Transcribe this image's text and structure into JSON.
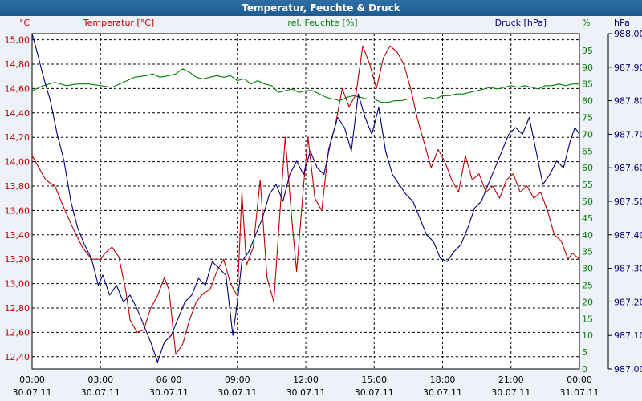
{
  "chart_data": {
    "type": "line",
    "title": "Temperatur, Feuchte & Druck",
    "x_ticks": [
      {
        "time": "00:00",
        "date": "30.07.11"
      },
      {
        "time": "03:00",
        "date": "30.07.11"
      },
      {
        "time": "06:00",
        "date": "30.07.11"
      },
      {
        "time": "09:00",
        "date": "30.07.11"
      },
      {
        "time": "12:00",
        "date": "30.07.11"
      },
      {
        "time": "15:00",
        "date": "30.07.11"
      },
      {
        "time": "18:00",
        "date": "30.07.11"
      },
      {
        "time": "21:00",
        "date": "30.07.11"
      },
      {
        "time": "00:00",
        "date": "31.07.11"
      }
    ],
    "x_range_hours": [
      0,
      24
    ],
    "axes": {
      "temperature": {
        "label": "Temperatur [°C]",
        "unit": "°C",
        "color": "#c00000",
        "range": [
          12.3,
          15.05
        ],
        "ticks": [
          "15,00",
          "14,80",
          "14,60",
          "14,40",
          "14,20",
          "14,00",
          "13,80",
          "13,60",
          "13,40",
          "13,20",
          "13,00",
          "12,80",
          "12,60",
          "12,40"
        ],
        "tick_values": [
          15.0,
          14.8,
          14.6,
          14.4,
          14.2,
          14.0,
          13.8,
          13.6,
          13.4,
          13.2,
          13.0,
          12.8,
          12.6,
          12.4
        ]
      },
      "humidity": {
        "label": "rel. Feuchte [%]",
        "unit": "%",
        "color": "#008000",
        "range": [
          0,
          100
        ],
        "ticks": [
          "95",
          "90",
          "85",
          "80",
          "75",
          "70",
          "65",
          "60",
          "55",
          "50",
          "45",
          "40",
          "35",
          "30",
          "25",
          "20",
          "15",
          "10",
          "5",
          "0"
        ],
        "tick_values": [
          95,
          90,
          85,
          80,
          75,
          70,
          65,
          60,
          55,
          50,
          45,
          40,
          35,
          30,
          25,
          20,
          15,
          10,
          5,
          0
        ]
      },
      "pressure": {
        "label": "Druck [hPa]",
        "unit": "hPa",
        "color": "#000080",
        "range": [
          987.0,
          988.0
        ],
        "ticks": [
          "988,00",
          "987,90",
          "987,80",
          "987,70",
          "987,60",
          "987,50",
          "987,40",
          "987,30",
          "987,20",
          "987,10",
          "987,00"
        ],
        "tick_values": [
          988.0,
          987.9,
          987.8,
          987.7,
          987.6,
          987.5,
          987.4,
          987.3,
          987.2,
          987.1,
          987.0
        ]
      }
    },
    "series": [
      {
        "name": "Temperatur",
        "axis": "temperature",
        "x": [
          0,
          0.3,
          0.6,
          1,
          1.4,
          1.8,
          2.2,
          2.6,
          3,
          3.2,
          3.5,
          3.8,
          4.1,
          4.3,
          4.6,
          4.9,
          5.2,
          5.5,
          5.8,
          6,
          6.3,
          6.6,
          6.9,
          7.2,
          7.5,
          7.8,
          8.1,
          8.4,
          8.7,
          9,
          9.2,
          9.4,
          9.7,
          10,
          10.3,
          10.6,
          10.8,
          11.1,
          11.4,
          11.6,
          11.9,
          12.1,
          12.4,
          12.7,
          13,
          13.3,
          13.6,
          13.9,
          14.2,
          14.5,
          14.8,
          15.1,
          15.4,
          15.7,
          16,
          16.3,
          16.6,
          16.9,
          17.2,
          17.5,
          17.8,
          18.1,
          18.4,
          18.7,
          19,
          19.3,
          19.6,
          19.9,
          20.2,
          20.5,
          20.8,
          21.1,
          21.4,
          21.7,
          22,
          22.3,
          22.6,
          22.9,
          23.2,
          23.5,
          23.7,
          24
        ],
        "values": [
          14.05,
          13.95,
          13.85,
          13.8,
          13.62,
          13.45,
          13.3,
          13.2,
          13.2,
          13.25,
          13.3,
          13.22,
          12.95,
          12.7,
          12.6,
          12.62,
          12.8,
          12.9,
          13.05,
          12.95,
          12.42,
          12.5,
          12.7,
          12.85,
          12.92,
          12.95,
          13.1,
          13.2,
          13.0,
          12.9,
          13.75,
          13.15,
          13.3,
          13.85,
          13.05,
          12.85,
          13.4,
          14.2,
          13.5,
          13.1,
          13.8,
          14.2,
          13.7,
          13.6,
          14.1,
          14.3,
          14.6,
          14.45,
          14.55,
          14.95,
          14.8,
          14.6,
          14.85,
          14.95,
          14.9,
          14.8,
          14.6,
          14.35,
          14.15,
          13.95,
          14.1,
          14.0,
          13.85,
          13.75,
          14.05,
          13.85,
          13.9,
          13.75,
          13.8,
          13.7,
          13.85,
          13.9,
          13.75,
          13.8,
          13.7,
          13.75,
          13.6,
          13.4,
          13.35,
          13.2,
          13.25,
          13.2
        ]
      },
      {
        "name": "rel. Feuchte",
        "axis": "humidity",
        "x": [
          0,
          0.5,
          1,
          1.5,
          2,
          2.5,
          3,
          3.5,
          4,
          4.5,
          5,
          5.3,
          5.6,
          6,
          6.3,
          6.6,
          6.9,
          7.2,
          7.5,
          7.8,
          8.1,
          8.4,
          8.7,
          9,
          9.3,
          9.6,
          9.9,
          10.2,
          10.5,
          10.8,
          11.1,
          11.4,
          11.7,
          12,
          12.3,
          12.6,
          12.9,
          13.2,
          13.5,
          13.8,
          14.1,
          14.4,
          14.7,
          15,
          15.3,
          15.6,
          15.9,
          16.2,
          16.5,
          16.8,
          17.1,
          17.4,
          17.7,
          18,
          18.3,
          18.6,
          18.9,
          19.2,
          19.5,
          19.8,
          20.1,
          20.4,
          20.7,
          21,
          21.3,
          21.6,
          21.9,
          22.2,
          22.5,
          22.8,
          23.1,
          23.4,
          23.7,
          24
        ],
        "values": [
          83,
          84.5,
          85.5,
          84.5,
          85,
          85,
          84.5,
          84,
          85.5,
          87,
          87.5,
          88,
          87,
          87.5,
          88,
          89.5,
          88.5,
          87,
          86.5,
          87,
          87.5,
          87,
          87.5,
          86,
          86.5,
          85,
          86,
          85,
          84.5,
          82.5,
          83,
          83.5,
          82.5,
          83,
          83,
          82,
          81,
          80.5,
          80,
          81,
          81.5,
          81,
          80.5,
          80.5,
          79.5,
          79.5,
          80,
          80,
          80.5,
          80.5,
          80.5,
          81,
          80.5,
          81.5,
          81.5,
          82,
          82,
          82.5,
          83,
          83.5,
          84,
          83.5,
          84,
          84.5,
          84,
          84.5,
          84,
          83.5,
          84.5,
          84.5,
          85,
          84.5,
          85,
          85
        ]
      },
      {
        "name": "Druck",
        "axis": "pressure",
        "x": [
          0,
          0.2,
          0.5,
          0.8,
          1.1,
          1.4,
          1.7,
          2,
          2.3,
          2.6,
          2.9,
          3.1,
          3.4,
          3.7,
          4,
          4.3,
          4.6,
          4.9,
          5.2,
          5.5,
          5.8,
          6.1,
          6.4,
          6.7,
          7,
          7.3,
          7.6,
          7.9,
          8.2,
          8.5,
          8.8,
          9,
          9.2,
          9.5,
          9.8,
          10.1,
          10.4,
          10.7,
          11,
          11.3,
          11.6,
          11.9,
          12.2,
          12.5,
          12.8,
          13.1,
          13.4,
          13.7,
          14,
          14.3,
          14.6,
          14.9,
          15.2,
          15.5,
          15.8,
          16.1,
          16.4,
          16.7,
          17,
          17.3,
          17.6,
          17.9,
          18.2,
          18.5,
          18.8,
          19.1,
          19.4,
          19.7,
          20,
          20.3,
          20.6,
          20.9,
          21.2,
          21.5,
          21.8,
          22.1,
          22.4,
          22.7,
          23,
          23.3,
          23.6,
          23.8,
          24
        ],
        "values": [
          988.0,
          987.95,
          987.87,
          987.8,
          987.7,
          987.62,
          987.5,
          987.42,
          987.37,
          987.33,
          987.25,
          987.28,
          987.22,
          987.25,
          987.2,
          987.22,
          987.18,
          987.13,
          987.08,
          987.02,
          987.08,
          987.1,
          987.15,
          987.2,
          987.22,
          987.27,
          987.25,
          987.32,
          987.3,
          987.28,
          987.1,
          987.2,
          987.32,
          987.35,
          987.4,
          987.45,
          987.52,
          987.55,
          987.5,
          987.58,
          987.62,
          987.58,
          987.65,
          987.6,
          987.58,
          987.68,
          987.75,
          987.72,
          987.65,
          987.82,
          987.75,
          987.7,
          987.78,
          987.65,
          987.58,
          987.55,
          987.52,
          987.5,
          987.45,
          987.4,
          987.38,
          987.33,
          987.32,
          987.35,
          987.37,
          987.42,
          987.48,
          987.5,
          987.55,
          987.6,
          987.65,
          987.7,
          987.72,
          987.7,
          987.75,
          987.65,
          987.55,
          987.58,
          987.62,
          987.6,
          987.68,
          987.72,
          987.7
        ]
      }
    ]
  }
}
